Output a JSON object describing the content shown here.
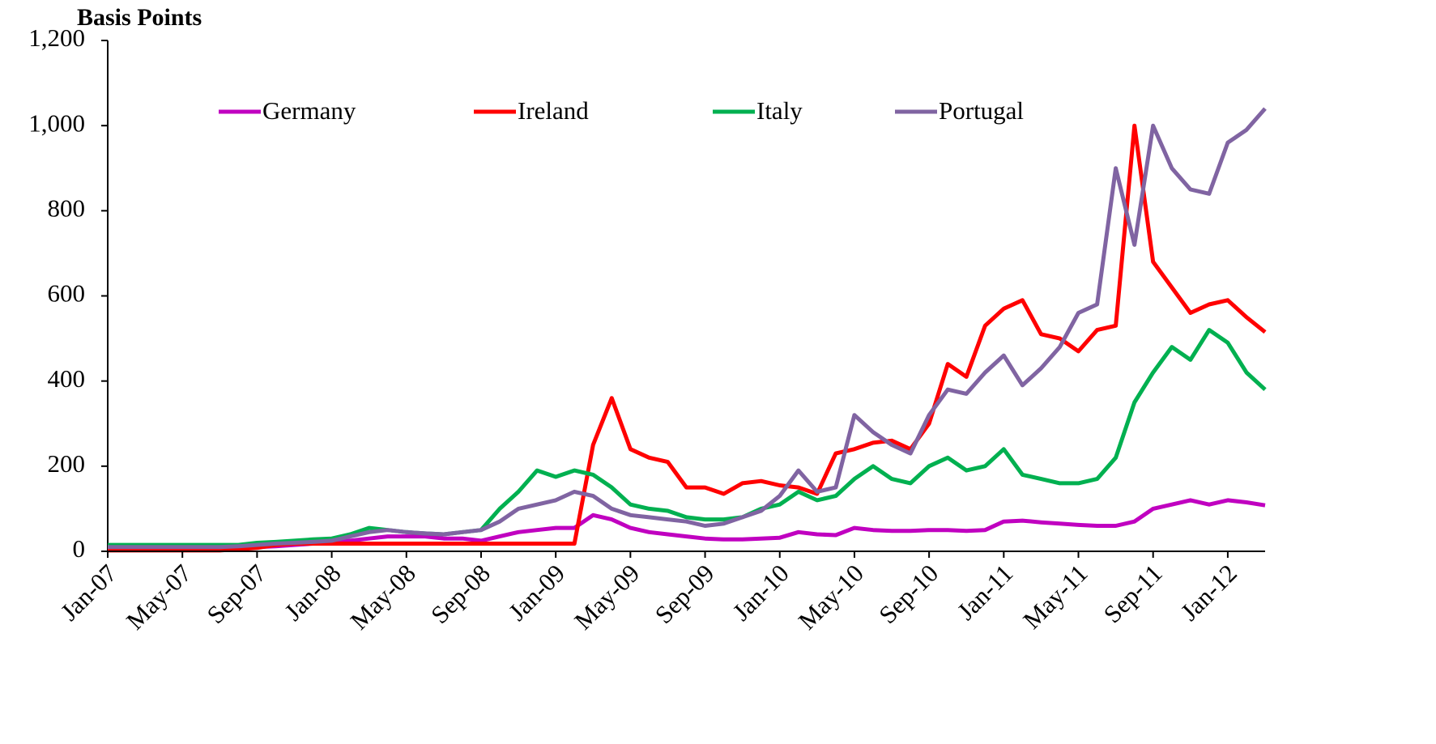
{
  "chart_data": {
    "type": "line",
    "y_axis_label": "Basis Points",
    "categories": [
      "Jan-07",
      null,
      null,
      null,
      "May-07",
      null,
      null,
      null,
      "Sep-07",
      null,
      null,
      null,
      "Jan-08",
      null,
      null,
      null,
      "May-08",
      null,
      null,
      null,
      "Sep-08",
      null,
      null,
      null,
      "Jan-09",
      null,
      null,
      null,
      "May-09",
      null,
      null,
      null,
      "Sep-09",
      null,
      null,
      null,
      "Jan-10",
      null,
      null,
      null,
      "May-10",
      null,
      null,
      null,
      "Sep-10",
      null,
      null,
      null,
      "Jan-11",
      null,
      null,
      null,
      "May-11",
      null,
      null,
      null,
      "Sep-11",
      null,
      null,
      null,
      "Jan-12",
      null,
      null
    ],
    "series": [
      {
        "name": "Germany",
        "color": "#c000c0",
        "values": [
          5,
          5,
          5,
          5,
          5,
          5,
          5,
          8,
          10,
          12,
          15,
          18,
          20,
          25,
          30,
          35,
          35,
          35,
          30,
          30,
          25,
          35,
          45,
          50,
          55,
          55,
          85,
          75,
          55,
          45,
          40,
          35,
          30,
          28,
          28,
          30,
          32,
          45,
          40,
          38,
          55,
          50,
          48,
          48,
          50,
          50,
          48,
          50,
          70,
          72,
          68,
          65,
          62,
          60,
          60,
          70,
          100,
          110,
          120,
          110,
          120,
          115,
          108
        ]
      },
      {
        "name": "Ireland",
        "color": "#ff0000",
        "values": [
          2,
          2,
          2,
          2,
          2,
          2,
          2,
          5,
          8,
          15,
          18,
          18,
          18,
          18,
          18,
          18,
          18,
          18,
          18,
          18,
          18,
          18,
          18,
          18,
          18,
          18,
          250,
          360,
          240,
          220,
          210,
          150,
          150,
          135,
          160,
          165,
          155,
          150,
          135,
          230,
          240,
          255,
          260,
          240,
          300,
          440,
          410,
          530,
          570,
          590,
          510,
          500,
          470,
          520,
          530,
          1000,
          680,
          620,
          560,
          580,
          590,
          550,
          515
        ]
      },
      {
        "name": "Italy",
        "color": "#00b050",
        "values": [
          15,
          15,
          15,
          15,
          15,
          15,
          15,
          15,
          20,
          22,
          25,
          28,
          30,
          40,
          55,
          50,
          45,
          42,
          40,
          45,
          50,
          100,
          140,
          190,
          175,
          190,
          180,
          150,
          110,
          100,
          95,
          80,
          75,
          75,
          80,
          100,
          110,
          140,
          120,
          130,
          170,
          200,
          170,
          160,
          200,
          220,
          190,
          200,
          240,
          180,
          170,
          160,
          160,
          170,
          220,
          350,
          420,
          480,
          450,
          520,
          490,
          420,
          380
        ]
      },
      {
        "name": "Portugal",
        "color": "#8064a2",
        "values": [
          10,
          10,
          10,
          10,
          10,
          10,
          10,
          12,
          15,
          18,
          20,
          22,
          25,
          35,
          45,
          50,
          45,
          42,
          40,
          45,
          50,
          70,
          100,
          110,
          120,
          140,
          130,
          100,
          85,
          80,
          75,
          70,
          60,
          65,
          80,
          95,
          130,
          190,
          140,
          150,
          320,
          280,
          250,
          230,
          320,
          380,
          370,
          420,
          460,
          390,
          430,
          480,
          560,
          580,
          900,
          720,
          1000,
          900,
          850,
          840,
          960,
          990,
          1040
        ]
      }
    ],
    "ylim": [
      0,
      1200
    ],
    "yticks": [
      0,
      200,
      400,
      600,
      800,
      {
        "value": 1000,
        "label": "1,000"
      },
      {
        "value": 1200,
        "label": "1,200"
      }
    ],
    "legend": "top"
  }
}
